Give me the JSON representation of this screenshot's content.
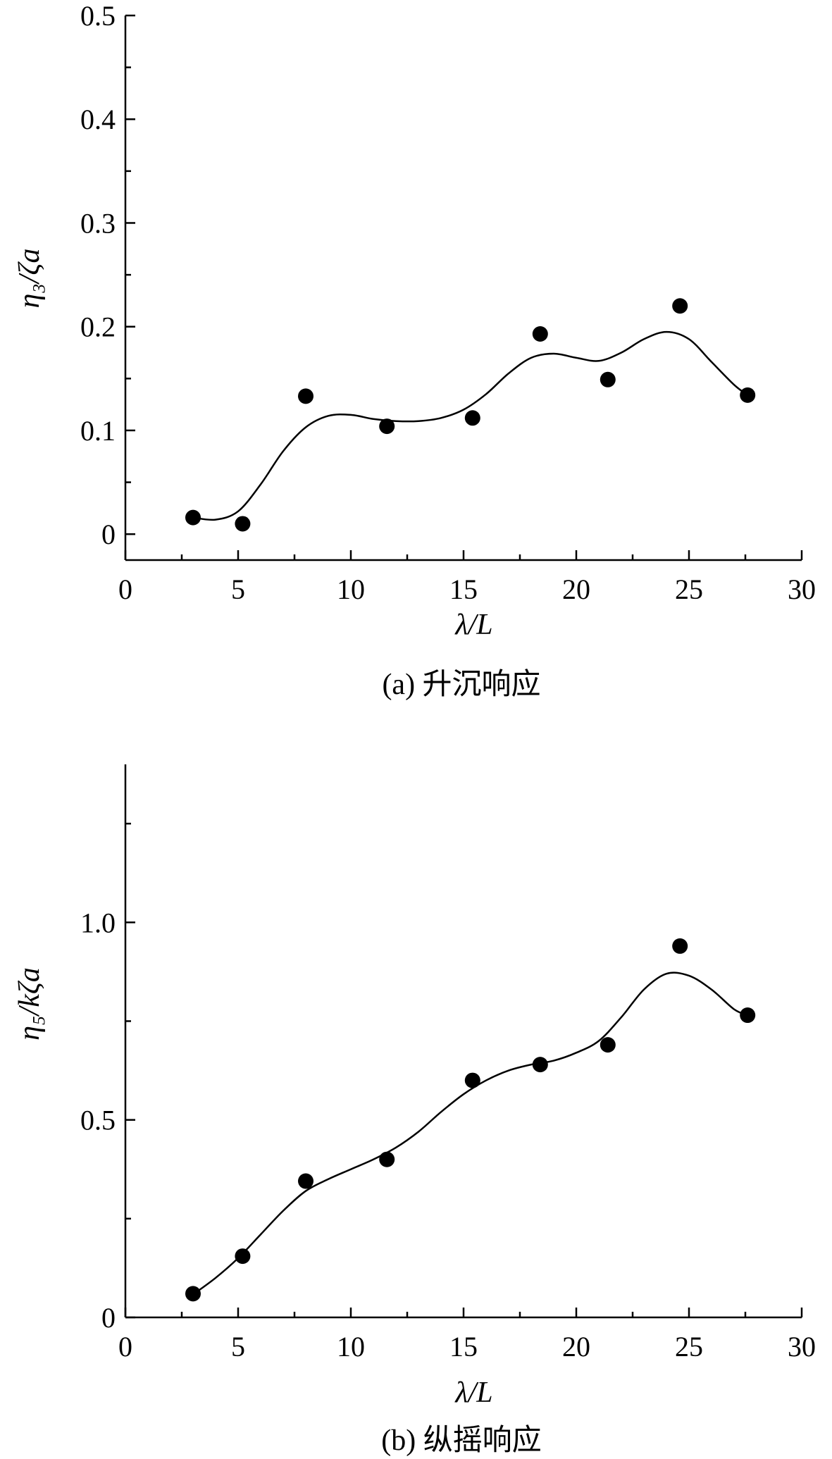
{
  "chart_data": [
    {
      "type": "scatter",
      "panel": "a",
      "xlabel": "λ/L",
      "ylabel": "η₃/ζa",
      "caption": "(a) 升沉响应",
      "xlim": [
        0,
        30
      ],
      "ylim": [
        -0.025,
        0.5
      ],
      "x_ticks": [
        "0",
        "5",
        "10",
        "15",
        "20",
        "25",
        "30"
      ],
      "y_ticks": [
        "0",
        "0.1",
        "0.2",
        "0.3",
        "0.4",
        "0.5"
      ],
      "grid": false,
      "series": [
        {
          "kind": "points",
          "x": [
            3.0,
            5.2,
            8.0,
            11.6,
            15.4,
            18.4,
            21.4,
            24.6,
            27.6
          ],
          "y": [
            0.016,
            0.01,
            0.133,
            0.104,
            0.112,
            0.193,
            0.149,
            0.22,
            0.134
          ]
        },
        {
          "kind": "fitted-curve",
          "x": [
            3.0,
            4.0,
            5.0,
            6.0,
            7.0,
            8.0,
            9.0,
            10.0,
            11.0,
            12.0,
            13.0,
            14.0,
            15.0,
            16.0,
            17.0,
            18.0,
            19.0,
            20.0,
            21.0,
            22.0,
            23.0,
            24.0,
            25.0,
            26.0,
            27.0,
            27.6
          ],
          "y": [
            0.016,
            0.014,
            0.022,
            0.048,
            0.08,
            0.103,
            0.114,
            0.115,
            0.111,
            0.109,
            0.109,
            0.112,
            0.12,
            0.135,
            0.155,
            0.17,
            0.174,
            0.17,
            0.167,
            0.175,
            0.188,
            0.195,
            0.188,
            0.166,
            0.144,
            0.134
          ]
        }
      ]
    },
    {
      "type": "scatter",
      "panel": "b",
      "xlabel": "λ/L",
      "ylabel": "η₅/kζa",
      "caption": "(b)  纵摇响应",
      "xlim": [
        0,
        30
      ],
      "ylim": [
        0,
        1.4
      ],
      "x_ticks": [
        "0",
        "5",
        "10",
        "15",
        "20",
        "25",
        "30"
      ],
      "y_ticks": [
        "0",
        "0.5",
        "1.0"
      ],
      "grid": false,
      "series": [
        {
          "kind": "points",
          "x": [
            3.0,
            5.2,
            8.0,
            11.6,
            15.4,
            18.4,
            21.4,
            24.6,
            27.6
          ],
          "y": [
            0.06,
            0.155,
            0.345,
            0.4,
            0.6,
            0.64,
            0.69,
            0.94,
            0.765
          ]
        },
        {
          "kind": "fitted-curve",
          "x": [
            3.0,
            4.0,
            5.0,
            6.0,
            7.0,
            8.0,
            9.0,
            10.0,
            11.0,
            12.0,
            13.0,
            14.0,
            15.0,
            16.0,
            17.0,
            18.0,
            19.0,
            20.0,
            21.0,
            22.0,
            23.0,
            24.0,
            25.0,
            26.0,
            27.0,
            27.6
          ],
          "y": [
            0.058,
            0.1,
            0.15,
            0.21,
            0.27,
            0.32,
            0.35,
            0.375,
            0.4,
            0.43,
            0.47,
            0.52,
            0.565,
            0.6,
            0.625,
            0.64,
            0.65,
            0.67,
            0.7,
            0.76,
            0.83,
            0.87,
            0.865,
            0.83,
            0.78,
            0.765
          ]
        }
      ]
    }
  ]
}
